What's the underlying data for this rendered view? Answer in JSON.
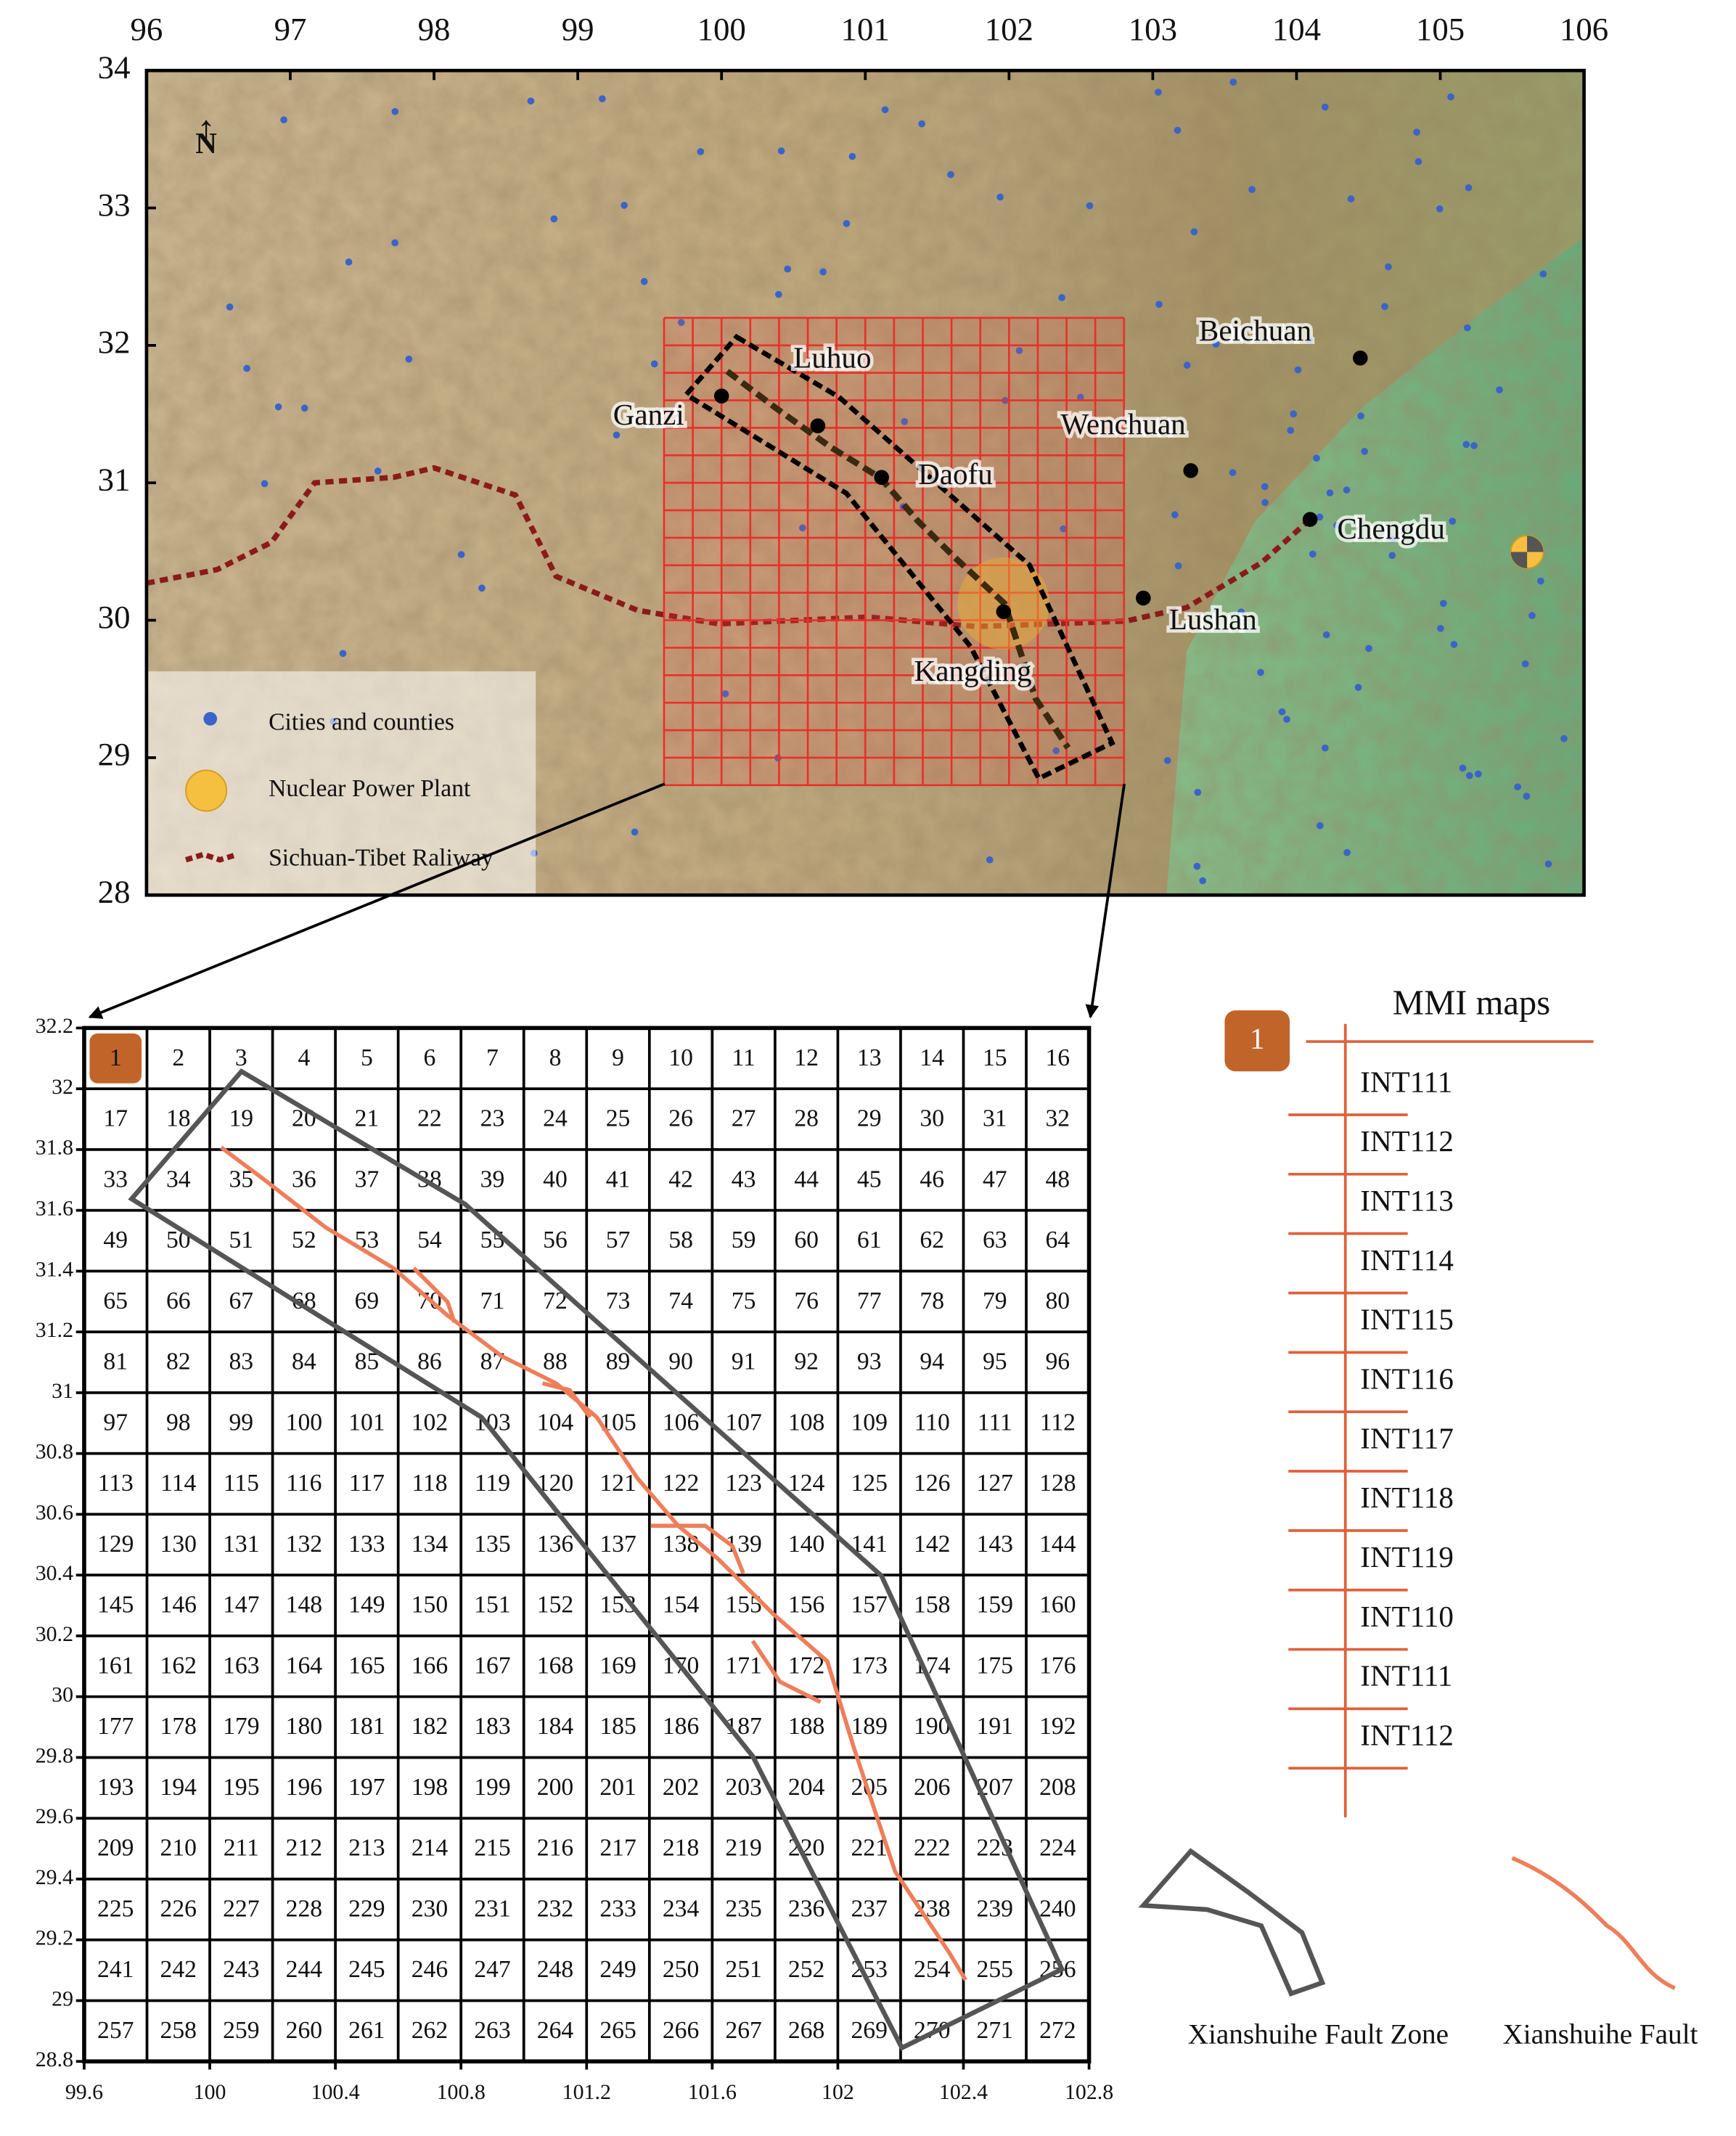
{
  "top_map": {
    "lon_ticks": [
      96,
      97,
      98,
      99,
      100,
      101,
      102,
      103,
      104,
      105,
      106
    ],
    "lat_ticks": [
      34,
      33,
      32,
      31,
      30,
      29,
      28
    ],
    "places": [
      "Luhuo",
      "Ganzi",
      "Daofu",
      "Wenchuan",
      "Beichuan",
      "Chengdu",
      "Lushan",
      "Kangding"
    ],
    "legend": [
      "Cities and counties",
      "Nuclear Power Plant",
      "Sichuan-Tibet Raliway"
    ]
  },
  "grid_map": {
    "xlim": [
      99.6,
      102.8
    ],
    "ylim": [
      28.8,
      32.2
    ],
    "xticks": [
      99.6,
      100,
      100.4,
      100.8,
      101.2,
      101.6,
      102,
      102.4,
      102.8
    ],
    "yticks": [
      32.2,
      32,
      31.8,
      31.6,
      31.4,
      31.2,
      31,
      30.8,
      30.6,
      30.4,
      30.2,
      30,
      29.8,
      29.6,
      29.4,
      29.2,
      29,
      28.8
    ],
    "cells": [
      1,
      2,
      3,
      4,
      5,
      6,
      7,
      8,
      9,
      10,
      11,
      12,
      13,
      14,
      15,
      16,
      17,
      18,
      19,
      20,
      21,
      22,
      23,
      24,
      25,
      26,
      27,
      28,
      29,
      30,
      31,
      32,
      33,
      34,
      35,
      36,
      37,
      38,
      39,
      40,
      41,
      42,
      43,
      44,
      45,
      46,
      47,
      48,
      49,
      50,
      51,
      52,
      53,
      54,
      55,
      56,
      57,
      58,
      59,
      60,
      61,
      62,
      63,
      64,
      65,
      66,
      67,
      68,
      69,
      70,
      71,
      72,
      73,
      74,
      75,
      76,
      77,
      78,
      79,
      80,
      81,
      82,
      83,
      84,
      85,
      86,
      87,
      88,
      89,
      90,
      91,
      92,
      93,
      94,
      95,
      96,
      97,
      98,
      99,
      100,
      101,
      102,
      103,
      104,
      105,
      106,
      107,
      108,
      109,
      110,
      111,
      112,
      113,
      114,
      115,
      116,
      117,
      118,
      119,
      120,
      121,
      122,
      123,
      124,
      125,
      126,
      127,
      128,
      129,
      130,
      131,
      132,
      133,
      134,
      135,
      136,
      137,
      138,
      139,
      140,
      141,
      142,
      143,
      144,
      145,
      146,
      147,
      148,
      149,
      150,
      151,
      152,
      153,
      154,
      155,
      156,
      157,
      158,
      159,
      160,
      161,
      162,
      163,
      164,
      165,
      166,
      167,
      168,
      169,
      170,
      171,
      172,
      173,
      174,
      175,
      176,
      177,
      178,
      179,
      180,
      181,
      182,
      183,
      184,
      185,
      186,
      187,
      188,
      189,
      190,
      191,
      192,
      193,
      194,
      195,
      196,
      197,
      198,
      199,
      200,
      201,
      202,
      203,
      204,
      205,
      206,
      207,
      208,
      209,
      210,
      211,
      212,
      213,
      214,
      215,
      216,
      217,
      218,
      219,
      220,
      221,
      222,
      223,
      224,
      225,
      226,
      227,
      228,
      229,
      230,
      231,
      232,
      233,
      234,
      235,
      236,
      237,
      238,
      239,
      240,
      241,
      242,
      243,
      244,
      245,
      246,
      247,
      248,
      249,
      250,
      251,
      252,
      253,
      254,
      255,
      256,
      257,
      258,
      259,
      260,
      261,
      262,
      263,
      264,
      265,
      266,
      267,
      268,
      269,
      270,
      271,
      272
    ]
  },
  "mmi_legend": {
    "title": "MMI maps",
    "cell": 1,
    "maps": [
      "INT111",
      "INT112",
      "INT113",
      "INT114",
      "INT115",
      "INT116",
      "INT117",
      "INT118",
      "INT119",
      "INT110",
      "INT111",
      "INT112"
    ]
  },
  "fault_legend": {
    "zone": "Xianshuihe Fault Zone",
    "fault": "Xianshuihe Fault"
  }
}
